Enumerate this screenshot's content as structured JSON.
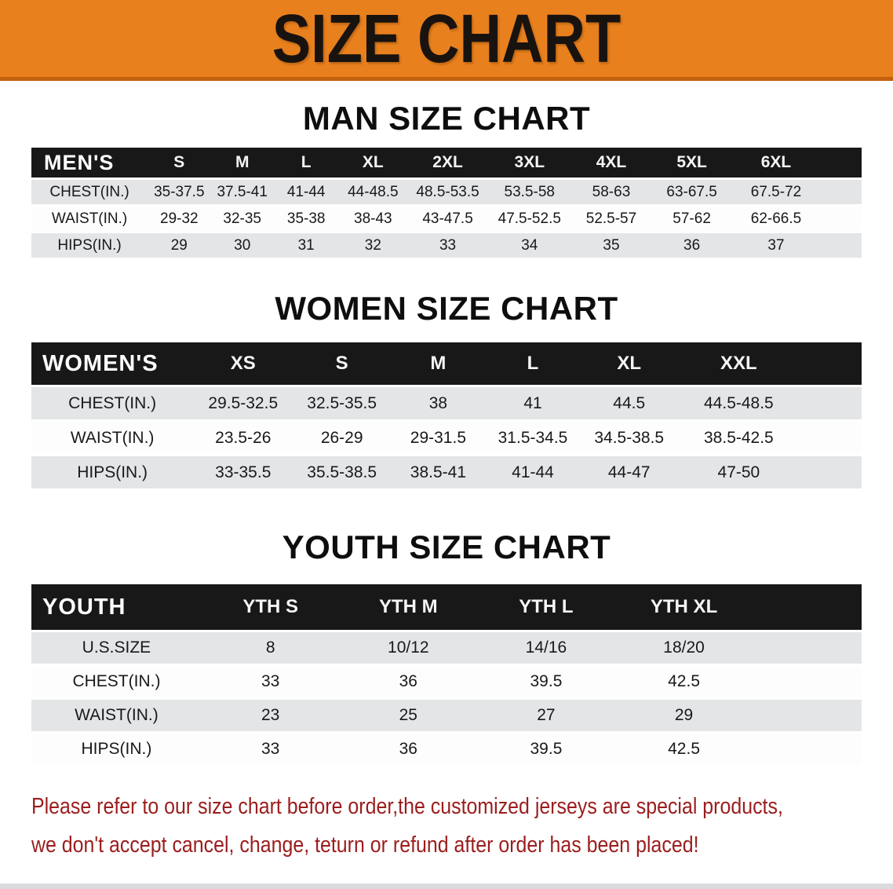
{
  "banner": {
    "title": "SIZE CHART"
  },
  "sections": {
    "men": {
      "heading": "MAN SIZE CHART"
    },
    "women": {
      "heading": "WOMEN SIZE CHART"
    },
    "youth": {
      "heading": "YOUTH SIZE CHART"
    }
  },
  "tables": {
    "men": {
      "corner_label": "MEN'S",
      "sizes": [
        "S",
        "M",
        "L",
        "XL",
        "2XL",
        "3XL",
        "4XL",
        "5XL",
        "6XL"
      ],
      "rows": [
        {
          "label": "CHEST(IN.)",
          "values": [
            "35-37.5",
            "37.5-41",
            "41-44",
            "44-48.5",
            "48.5-53.5",
            "53.5-58",
            "58-63",
            "63-67.5",
            "67.5-72"
          ]
        },
        {
          "label": "WAIST(IN.)",
          "values": [
            "29-32",
            "32-35",
            "35-38",
            "38-43",
            "43-47.5",
            "47.5-52.5",
            "52.5-57",
            "57-62",
            "62-66.5"
          ]
        },
        {
          "label": "HIPS(IN.)",
          "values": [
            "29",
            "30",
            "31",
            "32",
            "33",
            "34",
            "35",
            "36",
            "37"
          ]
        }
      ]
    },
    "women": {
      "corner_label": "WOMEN'S",
      "sizes": [
        "XS",
        "S",
        "M",
        "L",
        "XL",
        "XXL"
      ],
      "rows": [
        {
          "label": "CHEST(IN.)",
          "values": [
            "29.5-32.5",
            "32.5-35.5",
            "38",
            "41",
            "44.5",
            "44.5-48.5"
          ]
        },
        {
          "label": "WAIST(IN.)",
          "values": [
            "23.5-26",
            "26-29",
            "29-31.5",
            "31.5-34.5",
            "34.5-38.5",
            "38.5-42.5"
          ]
        },
        {
          "label": "HIPS(IN.)",
          "values": [
            "33-35.5",
            "35.5-38.5",
            "38.5-41",
            "41-44",
            "44-47",
            "47-50"
          ]
        }
      ]
    },
    "youth": {
      "corner_label": "YOUTH",
      "sizes": [
        "YTH S",
        "YTH M",
        "YTH L",
        "YTH XL"
      ],
      "rows": [
        {
          "label": "U.S.SIZE",
          "values": [
            "8",
            "10/12",
            "14/16",
            "18/20"
          ]
        },
        {
          "label": "CHEST(IN.)",
          "values": [
            "33",
            "36",
            "39.5",
            "42.5"
          ]
        },
        {
          "label": "WAIST(IN.)",
          "values": [
            "23",
            "25",
            "27",
            "29"
          ]
        },
        {
          "label": "HIPS(IN.)",
          "values": [
            "33",
            "36",
            "39.5",
            "42.5"
          ]
        }
      ]
    }
  },
  "footer": {
    "line1": "Please refer to our size chart before order,the customized jerseys are special products,",
    "line2": "we don't accept cancel, change, teturn or refund after order has been placed!"
  },
  "colors": {
    "banner_orange": "#e8801e",
    "banner_edge": "#c2620e",
    "table_header_black": "#181818",
    "row_stripe_gray": "#e3e5e7",
    "footer_red": "#9b1d1d"
  }
}
